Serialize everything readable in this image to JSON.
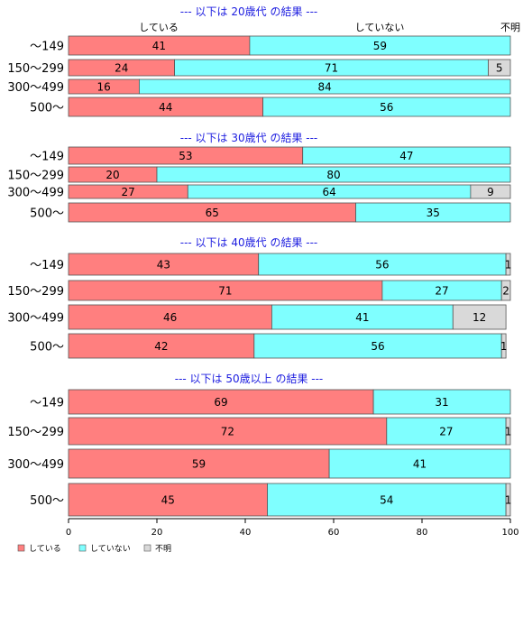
{
  "colors": {
    "yes": "#FF7F7F",
    "no": "#7FFFFF",
    "unknown": "#D9D9D9",
    "section_title": "#2020E0",
    "axis": "#000000",
    "bar_border": "#555555"
  },
  "top_labels": [
    "している",
    "していない",
    "不明"
  ],
  "legend": [
    "している",
    "していない",
    "不明"
  ],
  "chart_data": {
    "type": "bar",
    "orientation": "horizontal",
    "stacked": true,
    "xlim": [
      0,
      100
    ],
    "x_ticks": [
      0,
      20,
      40,
      60,
      80,
      100
    ],
    "series_names": [
      "している",
      "していない",
      "不明"
    ],
    "sections": [
      {
        "title": "--- 以下は 20歳代 の結果 ---",
        "rows": [
          {
            "label": "～149",
            "values": [
              41,
              59,
              0
            ]
          },
          {
            "label": "150～299",
            "values": [
              24,
              71,
              5
            ]
          },
          {
            "label": "300～499",
            "values": [
              16,
              84,
              0
            ]
          },
          {
            "label": "500～",
            "values": [
              44,
              56,
              0
            ]
          }
        ]
      },
      {
        "title": "--- 以下は 30歳代 の結果 ---",
        "rows": [
          {
            "label": "～149",
            "values": [
              53,
              47,
              0
            ]
          },
          {
            "label": "150～299",
            "values": [
              20,
              80,
              0
            ]
          },
          {
            "label": "300～499",
            "values": [
              27,
              64,
              9
            ]
          },
          {
            "label": "500～",
            "values": [
              65,
              35,
              0
            ]
          }
        ]
      },
      {
        "title": "--- 以下は 40歳代 の結果 ---",
        "rows": [
          {
            "label": "～149",
            "values": [
              43,
              56,
              1
            ]
          },
          {
            "label": "150～299",
            "values": [
              71,
              27,
              2
            ]
          },
          {
            "label": "300～499",
            "values": [
              46,
              41,
              12
            ]
          },
          {
            "label": "500～",
            "values": [
              42,
              56,
              1
            ]
          }
        ]
      },
      {
        "title": "--- 以下は 50歳以上 の結果 ---",
        "rows": [
          {
            "label": "～149",
            "values": [
              69,
              31,
              0
            ]
          },
          {
            "label": "150～299",
            "values": [
              72,
              27,
              1
            ]
          },
          {
            "label": "300～499",
            "values": [
              59,
              41,
              0
            ]
          },
          {
            "label": "500～",
            "values": [
              45,
              54,
              1
            ]
          }
        ]
      }
    ]
  }
}
